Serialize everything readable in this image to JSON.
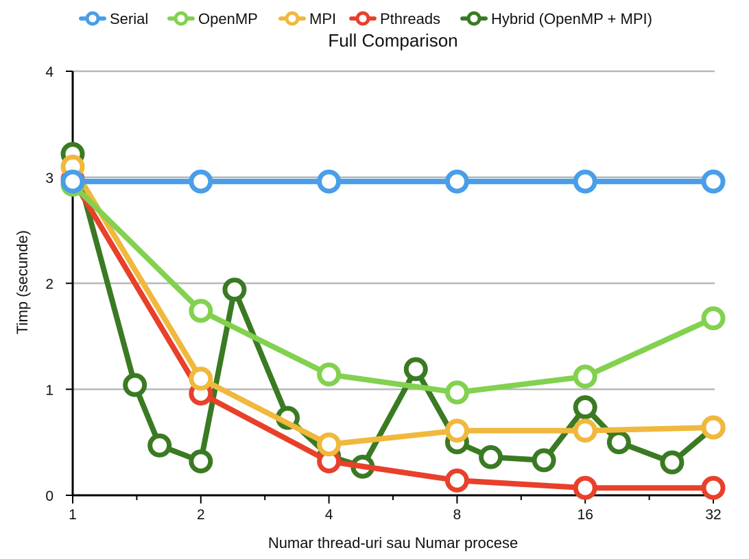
{
  "chart_data": {
    "type": "line",
    "title": "Full Comparison",
    "xlabel": "Numar thread-uri sau Numar procese",
    "ylabel": "Timp (secunde)",
    "x_scale": "log2",
    "x_ticks": [
      1,
      2,
      4,
      8,
      16,
      32
    ],
    "x_tick_labels": [
      "1",
      "2",
      "4",
      "8",
      "16",
      "32"
    ],
    "ylim": [
      0,
      4
    ],
    "y_ticks": [
      0,
      1,
      2,
      3,
      4
    ],
    "y_tick_labels": [
      "0",
      "1",
      "2",
      "3",
      "4"
    ],
    "grid": true,
    "legend_position": "top",
    "series": [
      {
        "name": "Serial",
        "color": "#4a9ee8",
        "points": [
          [
            1,
            2.96
          ],
          [
            2,
            2.96
          ],
          [
            4,
            2.96
          ],
          [
            8,
            2.96
          ],
          [
            16,
            2.96
          ],
          [
            32,
            2.96
          ]
        ]
      },
      {
        "name": "OpenMP",
        "color": "#82d14f",
        "points": [
          [
            1,
            2.93
          ],
          [
            2,
            1.74
          ],
          [
            4,
            1.14
          ],
          [
            8,
            0.97
          ],
          [
            16,
            1.12
          ],
          [
            32,
            1.67
          ]
        ]
      },
      {
        "name": "MPI",
        "color": "#f0b83c",
        "points": [
          [
            1,
            3.1
          ],
          [
            2,
            1.1
          ],
          [
            4,
            0.48
          ],
          [
            8,
            0.61
          ],
          [
            16,
            0.61
          ],
          [
            32,
            0.64
          ]
        ]
      },
      {
        "name": "Pthreads",
        "color": "#e8402a",
        "points": [
          [
            1,
            2.98
          ],
          [
            2,
            0.96
          ],
          [
            4,
            0.32
          ],
          [
            8,
            0.14
          ],
          [
            16,
            0.07
          ],
          [
            32,
            0.07
          ]
        ]
      },
      {
        "name": "Hybrid (OpenMP + MPI)",
        "color": "#3a7a22",
        "points": [
          [
            1,
            3.22
          ],
          [
            1.4,
            1.04
          ],
          [
            1.6,
            0.47
          ],
          [
            2,
            0.32
          ],
          [
            2.4,
            1.94
          ],
          [
            3.2,
            0.73
          ],
          [
            4,
            0.37
          ],
          [
            4.8,
            0.27
          ],
          [
            6.4,
            1.19
          ],
          [
            8,
            0.5
          ],
          [
            9.6,
            0.36
          ],
          [
            12.8,
            0.33
          ],
          [
            16,
            0.83
          ],
          [
            19.2,
            0.5
          ],
          [
            25.6,
            0.31
          ],
          [
            32,
            0.64
          ]
        ]
      }
    ]
  }
}
